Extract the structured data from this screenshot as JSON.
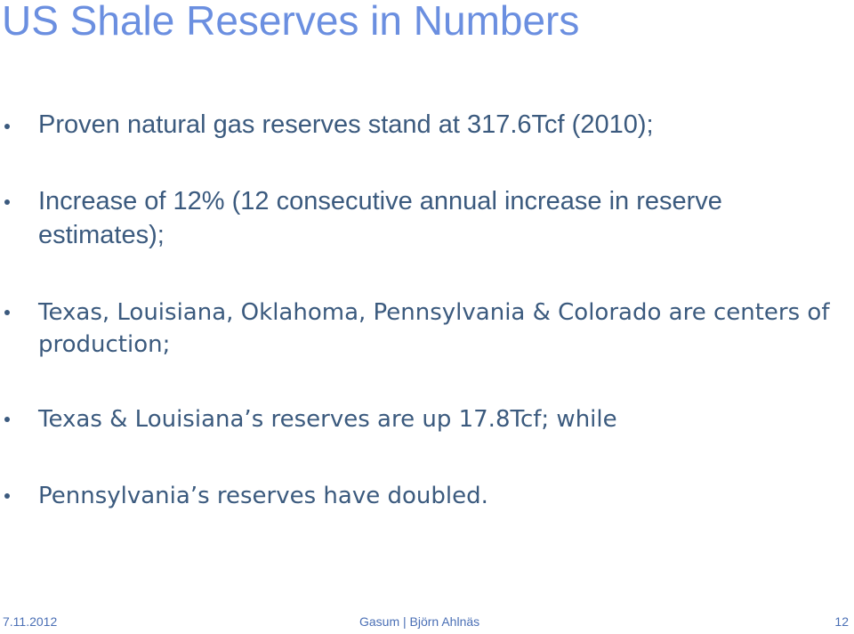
{
  "header": {
    "title": "US Shale Reserves in Numbers"
  },
  "bullets": [
    "Proven natural gas reserves stand at 317.6Tcf (2010);",
    "Increase of 12% (12 consecutive annual increase in reserve estimates);",
    "Texas, Louisiana, Oklahoma, Pennsylvania & Colorado are centers of production;",
    "Texas & Louisiana’s reserves are up 17.8Tcf; while",
    "Pennsylvania’s reserves have doubled."
  ],
  "footer": {
    "date": "7.11.2012",
    "center": "Gasum | Björn Ahlnäs",
    "page": "12"
  }
}
